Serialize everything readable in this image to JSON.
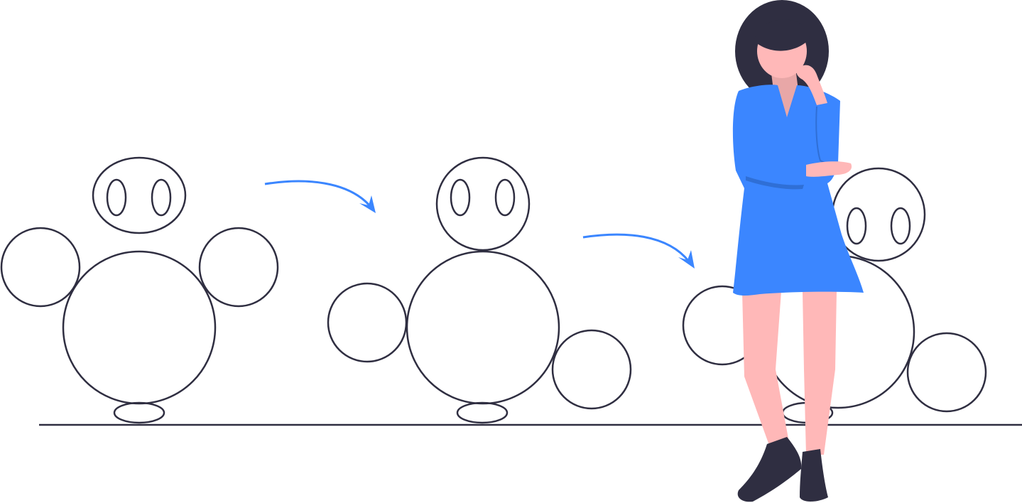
{
  "illustration": {
    "subject": "robot-transformation-sequence",
    "figures": [
      "robot-stage-1",
      "robot-stage-2",
      "robot-stage-3"
    ],
    "person": "woman-thinking"
  },
  "colors": {
    "background": "#ffffff",
    "outline": "#2f2e41",
    "accent_blue": "#3b86ff",
    "hair": "#2f2e41",
    "skin": "#ffb8b8",
    "skin_shadow": "#e8a7a7",
    "dress": "#3b86ff",
    "dress_shadow": "#2f6fd6",
    "shoes": "#2f2e41"
  }
}
